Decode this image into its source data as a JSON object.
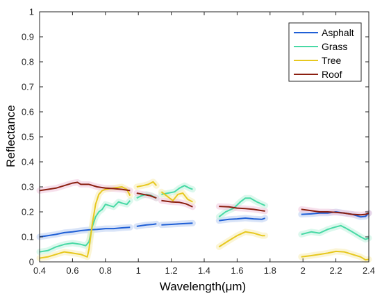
{
  "chart_data": {
    "type": "line",
    "xlabel": "Wavelength(μm)",
    "ylabel": "Reflectance",
    "xlim": [
      0.4,
      2.4
    ],
    "ylim": [
      0,
      1
    ],
    "x_ticks": [
      "0.4",
      "0.6",
      "0.8",
      "1",
      "1.2",
      "1.4",
      "1.6",
      "1.8",
      "2",
      "2.2",
      "2.4"
    ],
    "y_ticks": [
      "0",
      "0.1",
      "0.2",
      "0.3",
      "0.4",
      "0.5",
      "0.6",
      "0.7",
      "0.8",
      "0.9",
      "1"
    ],
    "legend_position": "top-right",
    "grid": false,
    "series": [
      {
        "name": "Asphalt",
        "color": "#1f5fd6",
        "band": "#b9cdf2",
        "segments": [
          [
            [
              0.4,
              0.1
            ],
            [
              0.45,
              0.105
            ],
            [
              0.5,
              0.11
            ],
            [
              0.55,
              0.117
            ],
            [
              0.6,
              0.12
            ],
            [
              0.65,
              0.125
            ],
            [
              0.7,
              0.128
            ],
            [
              0.75,
              0.13
            ],
            [
              0.8,
              0.133
            ],
            [
              0.85,
              0.133
            ],
            [
              0.9,
              0.136
            ],
            [
              0.95,
              0.138
            ]
          ],
          [
            [
              0.99,
              0.142
            ],
            [
              1.02,
              0.145
            ],
            [
              1.05,
              0.148
            ],
            [
              1.09,
              0.15
            ],
            [
              1.11,
              0.152
            ]
          ],
          [
            [
              1.14,
              0.148
            ],
            [
              1.2,
              0.15
            ],
            [
              1.25,
              0.152
            ],
            [
              1.33,
              0.155
            ]
          ],
          [
            [
              1.49,
              0.165
            ],
            [
              1.55,
              0.17
            ],
            [
              1.6,
              0.172
            ],
            [
              1.65,
              0.175
            ],
            [
              1.7,
              0.172
            ],
            [
              1.75,
              0.17
            ],
            [
              1.77,
              0.175
            ]
          ],
          [
            [
              1.99,
              0.19
            ],
            [
              2.05,
              0.192
            ],
            [
              2.1,
              0.195
            ],
            [
              2.15,
              0.195
            ],
            [
              2.2,
              0.2
            ],
            [
              2.25,
              0.195
            ],
            [
              2.3,
              0.19
            ],
            [
              2.35,
              0.18
            ],
            [
              2.38,
              0.182
            ],
            [
              2.4,
              0.195
            ]
          ]
        ]
      },
      {
        "name": "Grass",
        "color": "#48d9a5",
        "band": "#bff2de",
        "segments": [
          [
            [
              0.4,
              0.04
            ],
            [
              0.45,
              0.045
            ],
            [
              0.5,
              0.06
            ],
            [
              0.55,
              0.07
            ],
            [
              0.6,
              0.075
            ],
            [
              0.65,
              0.07
            ],
            [
              0.68,
              0.065
            ],
            [
              0.7,
              0.08
            ],
            [
              0.72,
              0.14
            ],
            [
              0.74,
              0.18
            ],
            [
              0.76,
              0.2
            ],
            [
              0.78,
              0.21
            ],
            [
              0.8,
              0.23
            ],
            [
              0.85,
              0.22
            ],
            [
              0.88,
              0.24
            ],
            [
              0.9,
              0.235
            ],
            [
              0.93,
              0.23
            ],
            [
              0.95,
              0.245
            ]
          ],
          [
            [
              0.99,
              0.255
            ],
            [
              1.02,
              0.265
            ],
            [
              1.05,
              0.27
            ],
            [
              1.08,
              0.265
            ],
            [
              1.11,
              0.255
            ]
          ],
          [
            [
              1.14,
              0.27
            ],
            [
              1.18,
              0.275
            ],
            [
              1.22,
              0.28
            ],
            [
              1.25,
              0.295
            ],
            [
              1.28,
              0.305
            ],
            [
              1.31,
              0.295
            ],
            [
              1.33,
              0.29
            ]
          ],
          [
            [
              1.49,
              0.18
            ],
            [
              1.53,
              0.2
            ],
            [
              1.58,
              0.215
            ],
            [
              1.62,
              0.24
            ],
            [
              1.65,
              0.255
            ],
            [
              1.68,
              0.255
            ],
            [
              1.72,
              0.24
            ],
            [
              1.77,
              0.225
            ]
          ],
          [
            [
              1.99,
              0.11
            ],
            [
              2.05,
              0.12
            ],
            [
              2.1,
              0.115
            ],
            [
              2.15,
              0.13
            ],
            [
              2.2,
              0.14
            ],
            [
              2.23,
              0.145
            ],
            [
              2.26,
              0.135
            ],
            [
              2.3,
              0.12
            ],
            [
              2.35,
              0.1
            ],
            [
              2.38,
              0.09
            ],
            [
              2.4,
              0.095
            ]
          ]
        ]
      },
      {
        "name": "Tree",
        "color": "#e7c81f",
        "band": "#f7ecb4",
        "segments": [
          [
            [
              0.4,
              0.015
            ],
            [
              0.45,
              0.02
            ],
            [
              0.5,
              0.03
            ],
            [
              0.55,
              0.04
            ],
            [
              0.6,
              0.035
            ],
            [
              0.65,
              0.03
            ],
            [
              0.69,
              0.02
            ],
            [
              0.7,
              0.05
            ],
            [
              0.72,
              0.15
            ],
            [
              0.74,
              0.23
            ],
            [
              0.76,
              0.27
            ],
            [
              0.78,
              0.285
            ],
            [
              0.8,
              0.29
            ],
            [
              0.85,
              0.295
            ],
            [
              0.9,
              0.3
            ],
            [
              0.93,
              0.29
            ],
            [
              0.95,
              0.265
            ]
          ],
          [
            [
              0.99,
              0.3
            ],
            [
              1.03,
              0.305
            ],
            [
              1.06,
              0.31
            ],
            [
              1.09,
              0.32
            ],
            [
              1.11,
              0.305
            ]
          ],
          [
            [
              1.14,
              0.28
            ],
            [
              1.18,
              0.26
            ],
            [
              1.21,
              0.245
            ],
            [
              1.24,
              0.27
            ],
            [
              1.27,
              0.275
            ],
            [
              1.3,
              0.25
            ],
            [
              1.33,
              0.24
            ]
          ],
          [
            [
              1.49,
              0.06
            ],
            [
              1.55,
              0.085
            ],
            [
              1.6,
              0.105
            ],
            [
              1.65,
              0.12
            ],
            [
              1.7,
              0.115
            ],
            [
              1.75,
              0.105
            ],
            [
              1.77,
              0.105
            ]
          ],
          [
            [
              1.99,
              0.02
            ],
            [
              2.05,
              0.025
            ],
            [
              2.1,
              0.03
            ],
            [
              2.15,
              0.035
            ],
            [
              2.2,
              0.042
            ],
            [
              2.25,
              0.04
            ],
            [
              2.3,
              0.03
            ],
            [
              2.35,
              0.02
            ],
            [
              2.38,
              0.008
            ],
            [
              2.4,
              0.01
            ]
          ]
        ]
      },
      {
        "name": "Roof",
        "color": "#8b1f10",
        "band": "#f0c6dc",
        "segments": [
          [
            [
              0.4,
              0.285
            ],
            [
              0.45,
              0.29
            ],
            [
              0.5,
              0.295
            ],
            [
              0.55,
              0.305
            ],
            [
              0.6,
              0.315
            ],
            [
              0.63,
              0.318
            ],
            [
              0.65,
              0.31
            ],
            [
              0.7,
              0.31
            ],
            [
              0.75,
              0.3
            ],
            [
              0.8,
              0.295
            ],
            [
              0.85,
              0.293
            ],
            [
              0.9,
              0.29
            ],
            [
              0.95,
              0.285
            ]
          ],
          [
            [
              0.99,
              0.275
            ],
            [
              1.03,
              0.27
            ],
            [
              1.07,
              0.265
            ],
            [
              1.11,
              0.255
            ]
          ],
          [
            [
              1.14,
              0.245
            ],
            [
              1.2,
              0.24
            ],
            [
              1.25,
              0.238
            ],
            [
              1.29,
              0.232
            ],
            [
              1.33,
              0.22
            ]
          ],
          [
            [
              1.49,
              0.222
            ],
            [
              1.55,
              0.22
            ],
            [
              1.6,
              0.215
            ],
            [
              1.65,
              0.213
            ],
            [
              1.7,
              0.21
            ],
            [
              1.75,
              0.205
            ],
            [
              1.77,
              0.203
            ]
          ],
          [
            [
              1.99,
              0.21
            ],
            [
              2.05,
              0.205
            ],
            [
              2.1,
              0.2
            ],
            [
              2.15,
              0.2
            ],
            [
              2.2,
              0.198
            ],
            [
              2.25,
              0.195
            ],
            [
              2.3,
              0.19
            ],
            [
              2.35,
              0.188
            ],
            [
              2.38,
              0.19
            ],
            [
              2.4,
              0.195
            ]
          ]
        ]
      }
    ]
  }
}
